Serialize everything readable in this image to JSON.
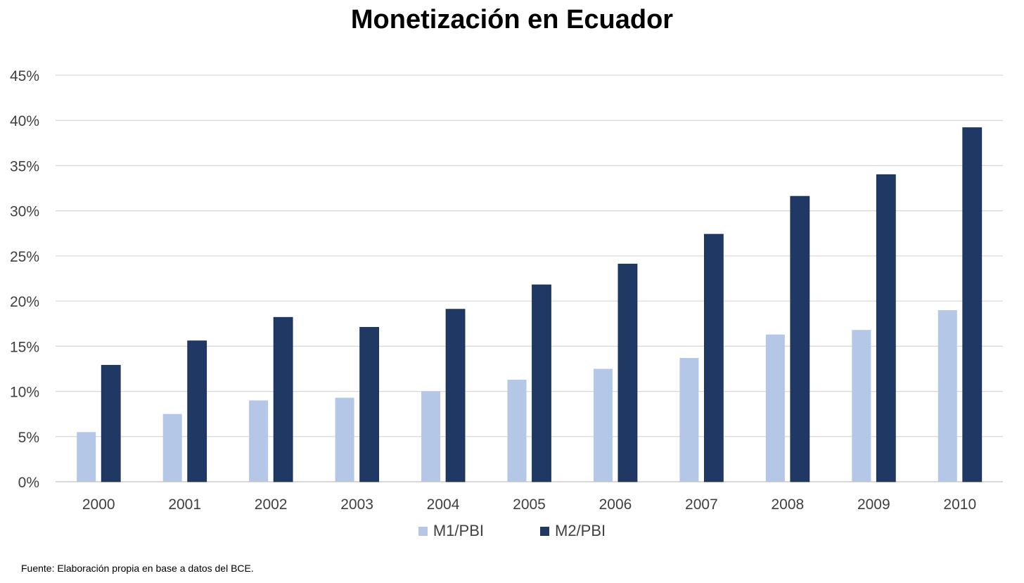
{
  "chart_data": {
    "type": "bar",
    "title": "Monetización en Ecuador",
    "categories": [
      "2000",
      "2001",
      "2002",
      "2003",
      "2004",
      "2005",
      "2006",
      "2007",
      "2008",
      "2009",
      "2010"
    ],
    "series": [
      {
        "name": "M1/PBI",
        "color": "#B4C7E7",
        "values": [
          5.5,
          7.5,
          9.0,
          9.3,
          10.0,
          11.3,
          12.5,
          13.7,
          16.3,
          16.8,
          19.0
        ]
      },
      {
        "name": "M2/PBI",
        "color": "#203864",
        "values": [
          12.9,
          15.6,
          18.2,
          17.1,
          19.1,
          21.8,
          24.1,
          27.4,
          31.6,
          34.0,
          39.2
        ]
      }
    ],
    "y_ticks": [
      "0%",
      "5%",
      "10%",
      "15%",
      "20%",
      "25%",
      "30%",
      "35%",
      "40%",
      "45%"
    ],
    "ylim": [
      0,
      45
    ],
    "grid": true,
    "legend_position": "bottom"
  },
  "footnote": "Fuente: Elaboración propia en base a datos del BCE."
}
